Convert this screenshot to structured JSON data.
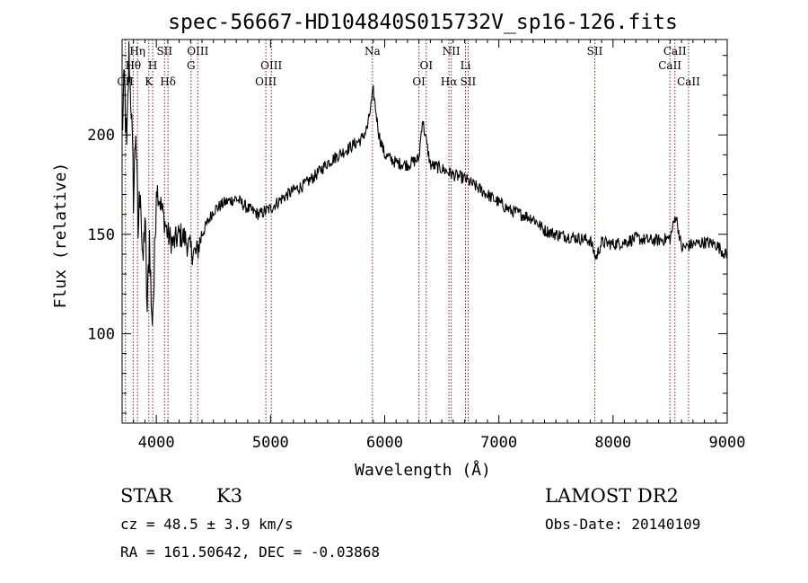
{
  "chart_data": {
    "type": "line",
    "title": "spec-56667-HD104840S015732V_sp16-126.fits",
    "xlabel": "Wavelength (Å)",
    "ylabel": "Flux (relative)",
    "xlim": [
      3700,
      9000
    ],
    "ylim": [
      55,
      248
    ],
    "x_ticks": [
      4000,
      5000,
      6000,
      7000,
      8000,
      9000
    ],
    "y_ticks": [
      100,
      150,
      200
    ],
    "line_color": "#000000",
    "marker_color": "#8b1a1a",
    "series": [
      {
        "x": [
          3700,
          3720,
          3740,
          3760,
          3780,
          3800,
          3820,
          3840,
          3860,
          3880,
          3900,
          3920,
          3940,
          3960,
          3980,
          4000,
          4050,
          4100,
          4150,
          4200,
          4250,
          4300,
          4350,
          4400,
          4500,
          4600,
          4700,
          4800,
          4900,
          5000,
          5100,
          5200,
          5300,
          5400,
          5500,
          5600,
          5700,
          5800,
          5850,
          5900,
          5950,
          6000,
          6100,
          6200,
          6300,
          6330,
          6400,
          6500,
          6600,
          6700,
          6800,
          6900,
          7000,
          7100,
          7200,
          7300,
          7400,
          7500,
          7600,
          7700,
          7800,
          7850,
          7900,
          8000,
          8100,
          8200,
          8300,
          8400,
          8500,
          8550,
          8600,
          8700,
          8800,
          8900,
          9000
        ],
        "y": [
          200,
          228,
          190,
          240,
          215,
          170,
          205,
          150,
          178,
          130,
          160,
          110,
          150,
          105,
          125,
          175,
          162,
          150,
          145,
          150,
          148,
          142,
          140,
          150,
          162,
          166,
          168,
          163,
          160,
          163,
          168,
          172,
          175,
          180,
          186,
          190,
          194,
          198,
          204,
          222,
          200,
          190,
          186,
          185,
          188,
          208,
          185,
          183,
          180,
          178,
          174,
          170,
          166,
          162,
          160,
          158,
          152,
          150,
          149,
          148,
          147,
          138,
          146,
          145,
          146,
          148,
          147,
          147,
          148,
          160,
          143,
          145,
          146,
          145,
          139
        ]
      }
    ],
    "lines": [
      {
        "label": "Hη",
        "x": 3835,
        "row": 0
      },
      {
        "label": "Hθ",
        "x": 3797,
        "row": 1
      },
      {
        "label": "CII",
        "x": 3729,
        "row": 2
      },
      {
        "label": "SII",
        "x": 4072,
        "row": 0
      },
      {
        "label": "H",
        "x": 3968,
        "row": 1
      },
      {
        "label": "K",
        "x": 3934,
        "row": 2
      },
      {
        "label": "Hδ",
        "x": 4102,
        "row": 2
      },
      {
        "label": "OIII",
        "x": 4363,
        "row": 0
      },
      {
        "label": "G",
        "x": 4304,
        "row": 1
      },
      {
        "label": "OIII",
        "x": 5007,
        "row": 1
      },
      {
        "label": "OIII",
        "x": 4959,
        "row": 2
      },
      {
        "label": "Na",
        "x": 5893,
        "row": 0
      },
      {
        "label": "NII",
        "x": 6583,
        "row": 0
      },
      {
        "label": "OI",
        "x": 6364,
        "row": 1
      },
      {
        "label": "OI",
        "x": 6300,
        "row": 2
      },
      {
        "label": "Li",
        "x": 6708,
        "row": 1
      },
      {
        "label": "Hα",
        "x": 6563,
        "row": 2
      },
      {
        "label": "SII",
        "x": 6731,
        "row": 2
      },
      {
        "label": "SII",
        "x": 7840,
        "row": 0
      },
      {
        "label": "CaII",
        "x": 8542,
        "row": 0
      },
      {
        "label": "CaII",
        "x": 8498,
        "row": 1
      },
      {
        "label": "CaII",
        "x": 8662,
        "row": 2
      }
    ]
  },
  "info": {
    "object_class": "STAR",
    "subclass": "K3",
    "survey": "LAMOST DR2",
    "cz": "cz = 48.5 ± 3.9 km/s",
    "coords": "RA = 161.50642, DEC =  -0.03868",
    "obs_date": "Obs-Date: 20140109"
  }
}
